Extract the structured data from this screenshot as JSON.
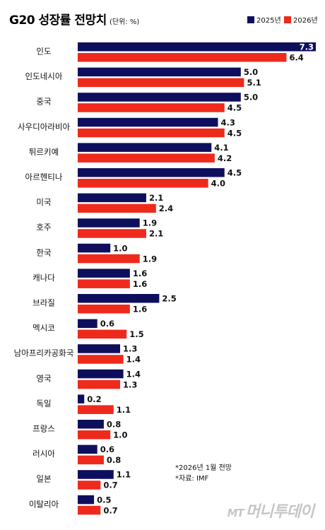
{
  "title": "G20 성장률 전망치",
  "unit_label": "(단위: %)",
  "notes": [
    "*2026년 1월 전망",
    "*자료: IMF"
  ],
  "watermark": {
    "mark": "MT",
    "text": "머니투데이"
  },
  "chart_data": {
    "type": "bar",
    "orientation": "horizontal",
    "categories": [
      "인도",
      "인도네시아",
      "중국",
      "사우디아라비아",
      "튀르키예",
      "아르헨티나",
      "미국",
      "호주",
      "한국",
      "캐나다",
      "브라질",
      "멕시코",
      "남아프리카공화국",
      "영국",
      "독일",
      "프랑스",
      "러시아",
      "일본",
      "이탈리아"
    ],
    "series": [
      {
        "name": "2025년",
        "color": "#0e0f5c",
        "values": [
          7.3,
          5.0,
          5.0,
          4.3,
          4.1,
          4.5,
          2.1,
          1.9,
          1.0,
          1.6,
          2.5,
          0.6,
          1.3,
          1.4,
          0.2,
          0.8,
          0.6,
          1.1,
          0.5
        ]
      },
      {
        "name": "2026년",
        "color": "#ee2a1c",
        "values": [
          6.4,
          5.1,
          4.5,
          4.5,
          4.2,
          4.0,
          2.4,
          2.1,
          1.9,
          1.6,
          1.6,
          1.5,
          1.4,
          1.3,
          1.1,
          1.0,
          0.8,
          0.7,
          0.7
        ]
      }
    ],
    "value_labels": {
      "2025": [
        "7.3",
        "5.0",
        "5.0",
        "4.3",
        "4.1",
        "4.5",
        "2.1",
        "1.9",
        "1.0",
        "1.6",
        "2.5",
        "0.6",
        "1.3",
        "1.4",
        "0.2",
        "0.8",
        "0.6",
        "1.1",
        "0.5"
      ],
      "2026": [
        "6.4",
        "5.1",
        "4.5",
        "4.5",
        "4.2",
        "4.0",
        "2.4",
        "2.1",
        "1.9",
        "1.6",
        "1.6",
        "1.5",
        "1.4",
        "1.3",
        "1.1",
        "1.0",
        "0.8",
        "0.7",
        "0.7"
      ]
    },
    "xlim": [
      0,
      7.3
    ],
    "grid": false,
    "legend_position": "top-right"
  }
}
